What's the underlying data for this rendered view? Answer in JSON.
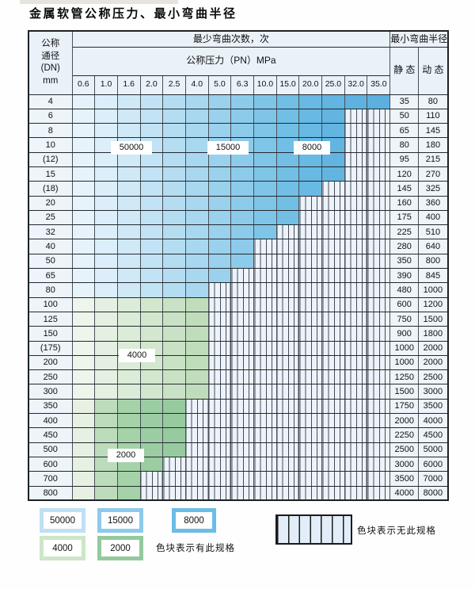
{
  "title": "金属软管公称压力、最小弯曲半径",
  "table": {
    "dn_header_lines": [
      "公称",
      "通径",
      "(DN)",
      "mm"
    ],
    "cycles_header": "最少弯曲次数，次",
    "pressure_header": "公称压力（PN）MPa",
    "radius_header": "最小弯曲半径",
    "static_label": "静 态",
    "dynamic_label": "动 态",
    "pressure_columns": [
      "0.6",
      "1.0",
      "1.6",
      "2.0",
      "2.5",
      "4.0",
      "5.0",
      "6.3",
      "10.0",
      "15.0",
      "20.0",
      "25.0",
      "32.0",
      "35.0"
    ],
    "rows": [
      {
        "dn": "4",
        "zone": "blue",
        "colored": 14,
        "static": "35",
        "dynamic": "80"
      },
      {
        "dn": "6",
        "zone": "blue",
        "colored": 12,
        "static": "50",
        "dynamic": "110"
      },
      {
        "dn": "8",
        "zone": "blue",
        "colored": 12,
        "static": "65",
        "dynamic": "145"
      },
      {
        "dn": "10",
        "zone": "blue",
        "colored": 12,
        "static": "80",
        "dynamic": "180"
      },
      {
        "dn": "(12)",
        "zone": "blue",
        "colored": 12,
        "static": "95",
        "dynamic": "215"
      },
      {
        "dn": "15",
        "zone": "blue",
        "colored": 12,
        "static": "120",
        "dynamic": "270"
      },
      {
        "dn": "(18)",
        "zone": "blue",
        "colored": 11,
        "static": "145",
        "dynamic": "325"
      },
      {
        "dn": "20",
        "zone": "blue",
        "colored": 10,
        "static": "160",
        "dynamic": "360"
      },
      {
        "dn": "25",
        "zone": "blue",
        "colored": 10,
        "static": "175",
        "dynamic": "400"
      },
      {
        "dn": "32",
        "zone": "blue",
        "colored": 9,
        "static": "225",
        "dynamic": "510"
      },
      {
        "dn": "40",
        "zone": "blue",
        "colored": 8,
        "static": "280",
        "dynamic": "640"
      },
      {
        "dn": "50",
        "zone": "blue",
        "colored": 8,
        "static": "350",
        "dynamic": "800"
      },
      {
        "dn": "65",
        "zone": "blue",
        "colored": 7,
        "static": "390",
        "dynamic": "845"
      },
      {
        "dn": "80",
        "zone": "blue",
        "colored": 6,
        "static": "480",
        "dynamic": "1000"
      },
      {
        "dn": "100",
        "zone": "green_light",
        "colored": 6,
        "static": "600",
        "dynamic": "1200"
      },
      {
        "dn": "125",
        "zone": "green_light",
        "colored": 6,
        "static": "750",
        "dynamic": "1500"
      },
      {
        "dn": "150",
        "zone": "green_light",
        "colored": 6,
        "static": "900",
        "dynamic": "1800"
      },
      {
        "dn": "(175)",
        "zone": "green_light",
        "colored": 6,
        "static": "1000",
        "dynamic": "2000"
      },
      {
        "dn": "200",
        "zone": "green_light",
        "colored": 6,
        "static": "1000",
        "dynamic": "2000"
      },
      {
        "dn": "250",
        "zone": "green_light",
        "colored": 6,
        "static": "1250",
        "dynamic": "2500"
      },
      {
        "dn": "300",
        "zone": "green_light",
        "colored": 6,
        "static": "1500",
        "dynamic": "3000"
      },
      {
        "dn": "350",
        "zone": "green_dark",
        "colored": 5,
        "static": "1750",
        "dynamic": "3500"
      },
      {
        "dn": "400",
        "zone": "green_dark",
        "colored": 5,
        "static": "2000",
        "dynamic": "4000"
      },
      {
        "dn": "450",
        "zone": "green_dark",
        "colored": 5,
        "static": "2250",
        "dynamic": "4500"
      },
      {
        "dn": "500",
        "zone": "green_dark",
        "colored": 5,
        "static": "2500",
        "dynamic": "5000"
      },
      {
        "dn": "600",
        "zone": "green_dark",
        "colored": 4,
        "static": "3000",
        "dynamic": "6000"
      },
      {
        "dn": "700",
        "zone": "green_dark",
        "colored": 3,
        "static": "3500",
        "dynamic": "7000"
      },
      {
        "dn": "800",
        "zone": "green_dark",
        "colored": 3,
        "static": "4000",
        "dynamic": "8000"
      }
    ]
  },
  "overlay_labels": {
    "l50000": "50000",
    "l15000": "15000",
    "l8000": "8000",
    "l4000": "4000",
    "l2000": "2000"
  },
  "legend": {
    "s50000": "50000",
    "s15000": "15000",
    "s8000": "8000",
    "s4000": "4000",
    "s2000": "2000",
    "has_spec_text": "色块表示有此规格",
    "no_spec_text": "色块表示无此规格"
  },
  "colors": {
    "blue_ramp": [
      "#e7f3fb",
      "#dbeef9",
      "#cfe9f7",
      "#c2e3f5",
      "#b5ddf2",
      "#a8d7f0",
      "#9ad1ed",
      "#8dcbeb",
      "#7fc5e8",
      "#72bfe6",
      "#68b9e3",
      "#62b4e1",
      "#5fb2e0",
      "#5cb0df"
    ],
    "green_light_ramp": [
      "#edf5ec",
      "#e4f0e1",
      "#dbecd8",
      "#d2e7ce",
      "#c9e2c5",
      "#c0ddbb"
    ],
    "green_dark_ramp": [
      "#e7f1e3",
      "#bcdcbc",
      "#a5d2a9",
      "#9bcda2",
      "#97cb9f",
      "#93c89c"
    ],
    "hatch_fill": "#edf3fa",
    "hatch_line": "#454c54",
    "legend": {
      "c50000": "#bfe0f4",
      "c15000": "#8ccaec",
      "c8000": "#6dbce7",
      "c4000": "#cde6c9",
      "c2000": "#94c99e"
    }
  }
}
